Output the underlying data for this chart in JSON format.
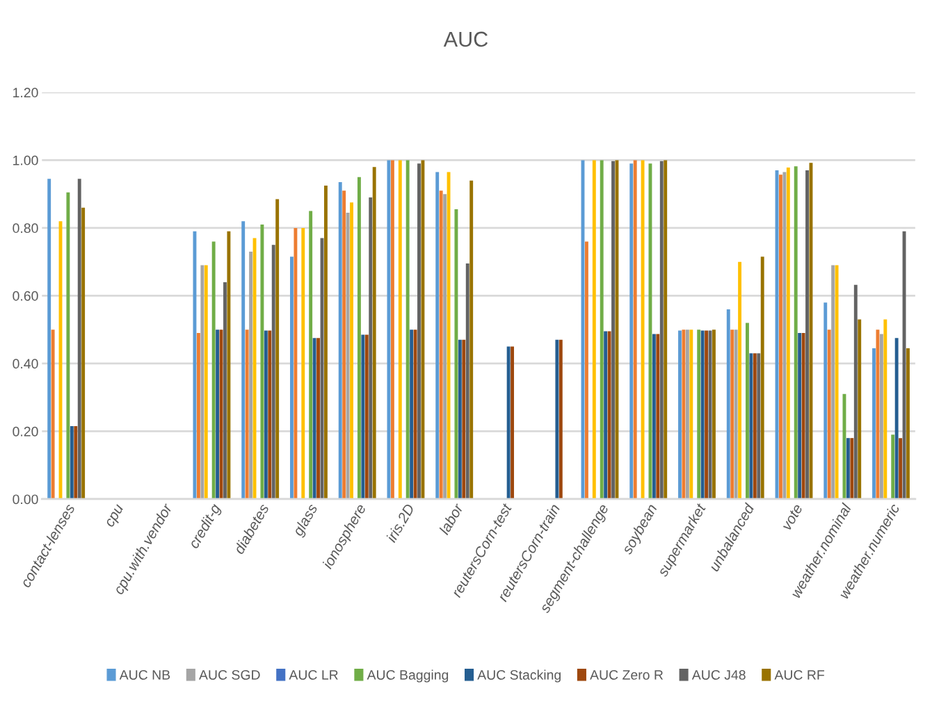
{
  "chart_data": {
    "type": "bar",
    "title": "AUC",
    "categories": [
      "contact-lenses",
      "cpu",
      "cpu.with.vendor",
      "credit-g",
      "diabetes",
      "glass",
      "ionosphere",
      "iris.2D",
      "labor",
      "reutersCorn-test",
      "reutersCorn-train",
      "segment-challenge",
      "soybean",
      "supermarket",
      "unbalanced",
      "vote",
      "weather.nominal",
      "weather.numeric"
    ],
    "series": [
      {
        "name": "AUC NB",
        "color": "#5b9bd5",
        "values": [
          0.945,
          null,
          null,
          0.79,
          0.82,
          0.715,
          0.935,
          1.0,
          0.965,
          null,
          null,
          1.0,
          0.99,
          0.497,
          0.56,
          0.97,
          0.58,
          0.445
        ]
      },
      {
        "color": "#ed7d31",
        "values": [
          0.5,
          null,
          null,
          0.49,
          0.5,
          0.8,
          0.91,
          1.0,
          0.91,
          null,
          null,
          0.76,
          1.0,
          0.5,
          0.5,
          0.957,
          0.5,
          0.5
        ]
      },
      {
        "name": "AUC SGD",
        "color": "#a5a5a5",
        "values": [
          null,
          null,
          null,
          0.69,
          0.73,
          null,
          0.845,
          null,
          0.9,
          null,
          null,
          null,
          null,
          0.5,
          0.5,
          0.965,
          0.69,
          0.487
        ]
      },
      {
        "color": "#ffc000",
        "values": [
          0.82,
          null,
          null,
          0.69,
          0.77,
          0.8,
          0.875,
          1.0,
          0.965,
          null,
          null,
          1.0,
          1.0,
          0.5,
          0.7,
          0.978,
          0.69,
          0.53
        ]
      },
      {
        "name": "AUC LR",
        "color": "#4472c4",
        "values": [
          null,
          null,
          null,
          null,
          null,
          null,
          null,
          null,
          null,
          null,
          null,
          null,
          null,
          null,
          null,
          null,
          null,
          null
        ]
      },
      {
        "name": "AUC Bagging",
        "color": "#70ad47",
        "values": [
          0.905,
          null,
          null,
          0.76,
          0.81,
          0.85,
          0.95,
          1.0,
          0.855,
          null,
          null,
          1.0,
          0.99,
          0.5,
          0.52,
          0.982,
          0.31,
          0.19
        ]
      },
      {
        "name": "AUC Stacking",
        "color": "#255e91",
        "values": [
          0.215,
          null,
          null,
          0.5,
          0.497,
          0.475,
          0.485,
          0.5,
          0.47,
          0.45,
          0.47,
          0.495,
          0.487,
          0.497,
          0.43,
          0.49,
          0.18,
          0.475
        ]
      },
      {
        "name": "AUC Zero R",
        "color": "#9e480e",
        "values": [
          0.215,
          null,
          null,
          0.5,
          0.497,
          0.475,
          0.485,
          0.5,
          0.47,
          0.45,
          0.47,
          0.495,
          0.487,
          0.497,
          0.43,
          0.49,
          0.18,
          0.18
        ]
      },
      {
        "name": "AUC J48",
        "color": "#636363",
        "values": [
          0.945,
          null,
          null,
          0.64,
          0.75,
          0.77,
          0.89,
          0.99,
          0.695,
          null,
          null,
          0.997,
          0.997,
          0.497,
          0.43,
          0.97,
          0.632,
          0.79
        ]
      },
      {
        "name": "AUC RF",
        "color": "#997300",
        "values": [
          0.86,
          null,
          null,
          0.79,
          0.885,
          0.925,
          0.98,
          1.0,
          0.94,
          null,
          null,
          1.0,
          1.0,
          0.5,
          0.715,
          0.992,
          0.53,
          0.445
        ]
      }
    ],
    "ylim": [
      0,
      1.2
    ],
    "yticks": [
      {
        "value": 0,
        "label": "0.00"
      },
      {
        "value": 0.2,
        "label": "0.20"
      },
      {
        "value": 0.4,
        "label": "0.40"
      },
      {
        "value": 0.6,
        "label": "0.60"
      },
      {
        "value": 0.8,
        "label": "0.80"
      },
      {
        "value": 1.0,
        "label": "1.00"
      },
      {
        "value": 1.2,
        "label": "1.20"
      }
    ],
    "grid": "y",
    "legend": "bottom"
  }
}
